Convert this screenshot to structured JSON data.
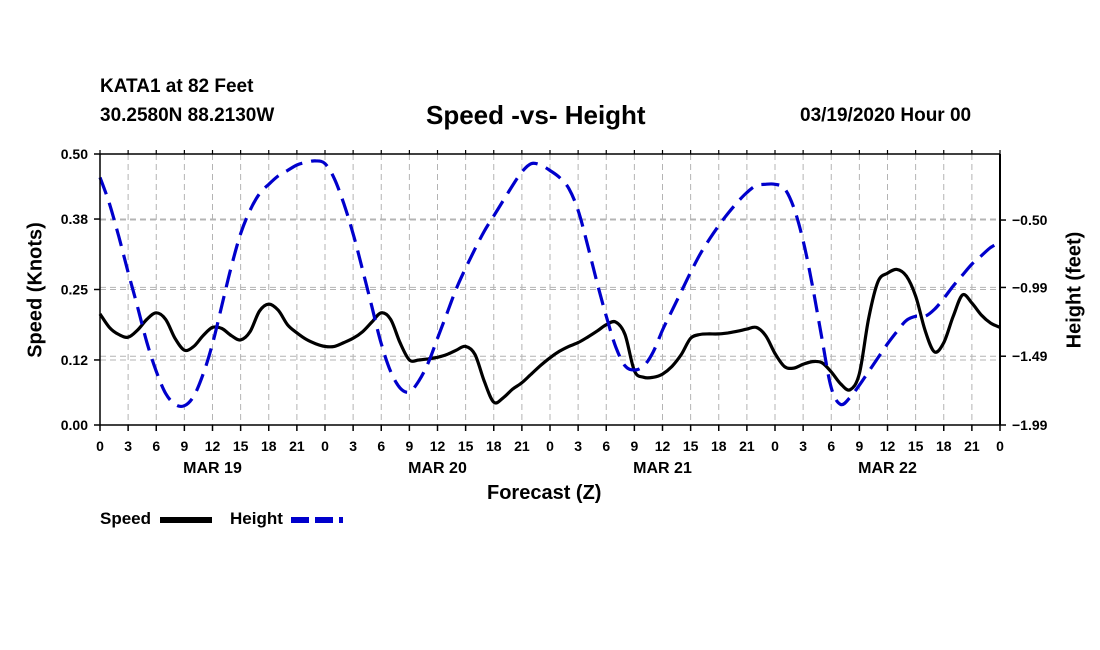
{
  "header": {
    "station": "KATA1 at 82 Feet",
    "coords": "30.2580N 88.2130W",
    "run": "03/19/2020 Hour 00"
  },
  "colors": {
    "speed": "#000000",
    "height": "#0000cc",
    "grid": "#b4b4b4"
  },
  "chart_data": {
    "type": "line",
    "title": "Speed -vs- Height",
    "xlabel": "Forecast (Z)",
    "ylabel": "Speed (Knots)",
    "ylabel_right": "Height (feet)",
    "x_unit": "hours from 03/19/2020 00Z",
    "xlim": [
      0,
      96
    ],
    "ylim": [
      0,
      0.5
    ],
    "ylim_right": [
      -1.99,
      -0.02
    ],
    "yticks": [
      0.0,
      0.12,
      0.25,
      0.38,
      0.5
    ],
    "ytick_labels": [
      "0.00",
      "0.12",
      "0.25",
      "0.38",
      "0.50"
    ],
    "yticks_right": [
      -1.99,
      -1.49,
      -0.99,
      -0.5
    ],
    "ytick_labels_right": [
      "−1.99",
      "−1.49",
      "−0.99",
      "−0.50"
    ],
    "xticks": [
      0,
      3,
      6,
      9,
      12,
      15,
      18,
      21,
      24,
      27,
      30,
      33,
      36,
      39,
      42,
      45,
      48,
      51,
      54,
      57,
      60,
      63,
      66,
      69,
      72,
      75,
      78,
      81,
      84,
      87,
      90,
      93,
      96
    ],
    "xtick_labels": [
      "0",
      "3",
      "6",
      "9",
      "12",
      "15",
      "18",
      "21",
      "0",
      "3",
      "6",
      "9",
      "12",
      "15",
      "18",
      "21",
      "0",
      "3",
      "6",
      "9",
      "12",
      "15",
      "18",
      "21",
      "0",
      "3",
      "6",
      "9",
      "12",
      "15",
      "18",
      "21",
      "0"
    ],
    "day_labels": [
      {
        "x": 12,
        "label": "MAR 19"
      },
      {
        "x": 36,
        "label": "MAR 20"
      },
      {
        "x": 60,
        "label": "MAR 21"
      },
      {
        "x": 84,
        "label": "MAR 22"
      }
    ],
    "grid": true,
    "legend": "bottom-left",
    "series": [
      {
        "name": "Speed",
        "axis": "left",
        "style": "solid",
        "x": [
          0,
          1,
          2,
          3,
          4,
          5,
          6,
          7,
          8,
          9,
          10,
          11,
          12,
          13,
          14,
          15,
          16,
          17,
          18,
          19,
          20,
          21,
          22,
          23,
          24,
          25,
          26,
          27,
          28,
          29,
          30,
          31,
          32,
          33,
          34,
          35,
          36,
          37,
          38,
          39,
          40,
          41,
          42,
          43,
          44,
          45,
          46,
          47,
          48,
          49,
          50,
          51,
          52,
          53,
          54,
          55,
          56,
          57,
          58,
          59,
          60,
          61,
          62,
          63,
          64,
          65,
          66,
          67,
          68,
          69,
          70,
          71,
          72,
          73,
          74,
          75,
          76,
          77,
          78,
          79,
          80,
          81,
          82,
          83,
          84,
          85,
          86,
          87,
          88,
          89,
          90,
          91,
          92,
          93,
          94,
          95,
          96
        ],
        "y": [
          0.205,
          0.18,
          0.167,
          0.162,
          0.175,
          0.195,
          0.207,
          0.195,
          0.16,
          0.138,
          0.145,
          0.165,
          0.18,
          0.178,
          0.165,
          0.157,
          0.172,
          0.21,
          0.223,
          0.212,
          0.185,
          0.17,
          0.158,
          0.15,
          0.145,
          0.145,
          0.152,
          0.16,
          0.172,
          0.19,
          0.207,
          0.195,
          0.152,
          0.12,
          0.12,
          0.122,
          0.125,
          0.13,
          0.138,
          0.145,
          0.13,
          0.08,
          0.042,
          0.05,
          0.066,
          0.078,
          0.094,
          0.11,
          0.124,
          0.136,
          0.145,
          0.152,
          0.162,
          0.173,
          0.185,
          0.19,
          0.167,
          0.1,
          0.088,
          0.088,
          0.094,
          0.108,
          0.13,
          0.16,
          0.167,
          0.168,
          0.168,
          0.17,
          0.173,
          0.177,
          0.18,
          0.165,
          0.132,
          0.108,
          0.105,
          0.112,
          0.117,
          0.115,
          0.098,
          0.076,
          0.065,
          0.095,
          0.198,
          0.265,
          0.28,
          0.287,
          0.275,
          0.238,
          0.175,
          0.135,
          0.152,
          0.2,
          0.24,
          0.225,
          0.203,
          0.188,
          0.18
        ]
      },
      {
        "name": "Height",
        "axis": "right",
        "style": "dashed",
        "x": [
          0,
          1,
          2,
          3,
          4,
          5,
          6,
          7,
          8,
          9,
          10,
          11,
          12,
          13,
          14,
          15,
          16,
          17,
          18,
          19,
          20,
          21,
          22,
          23,
          24,
          25,
          26,
          27,
          28,
          29,
          30,
          31,
          32,
          33,
          34,
          35,
          36,
          37,
          38,
          39,
          40,
          41,
          42,
          43,
          44,
          45,
          46,
          47,
          48,
          49,
          50,
          51,
          52,
          53,
          54,
          55,
          56,
          57,
          58,
          59,
          60,
          61,
          62,
          63,
          64,
          65,
          66,
          67,
          68,
          69,
          70,
          71,
          72,
          73,
          74,
          75,
          76,
          77,
          78,
          79,
          80,
          81,
          82,
          83,
          84,
          85,
          86,
          87,
          88,
          89,
          90,
          91,
          92,
          93,
          94,
          95,
          96
        ],
        "y": [
          -0.19,
          -0.38,
          -0.62,
          -0.88,
          -1.13,
          -1.39,
          -1.6,
          -1.76,
          -1.84,
          -1.85,
          -1.78,
          -1.62,
          -1.4,
          -1.12,
          -0.84,
          -0.6,
          -0.43,
          -0.31,
          -0.24,
          -0.18,
          -0.14,
          -0.1,
          -0.08,
          -0.07,
          -0.09,
          -0.2,
          -0.38,
          -0.6,
          -0.86,
          -1.13,
          -1.4,
          -1.6,
          -1.72,
          -1.75,
          -1.67,
          -1.54,
          -1.36,
          -1.18,
          -1.0,
          -0.85,
          -0.71,
          -0.58,
          -0.47,
          -0.36,
          -0.25,
          -0.15,
          -0.09,
          -0.1,
          -0.14,
          -0.19,
          -0.27,
          -0.43,
          -0.68,
          -0.95,
          -1.2,
          -1.42,
          -1.56,
          -1.59,
          -1.56,
          -1.46,
          -1.3,
          -1.16,
          -1.02,
          -0.88,
          -0.75,
          -0.64,
          -0.54,
          -0.45,
          -0.37,
          -0.3,
          -0.25,
          -0.24,
          -0.24,
          -0.27,
          -0.41,
          -0.65,
          -0.98,
          -1.36,
          -1.72,
          -1.84,
          -1.79,
          -1.7,
          -1.6,
          -1.5,
          -1.4,
          -1.31,
          -1.23,
          -1.2,
          -1.2,
          -1.15,
          -1.07,
          -0.98,
          -0.9,
          -0.82,
          -0.76,
          -0.7,
          -0.66
        ]
      }
    ]
  }
}
